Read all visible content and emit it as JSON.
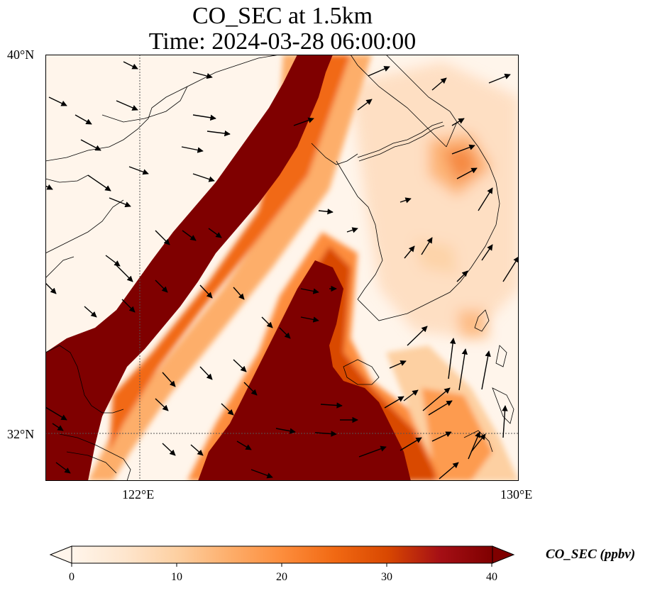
{
  "title_line1": "CO_SEC at 1.5km",
  "title_line2": "Time: 2024-03-28 06:00:00",
  "axes": {
    "lon_ticks": [
      "122°E",
      "130°E"
    ],
    "lat_ticks": [
      "40°N",
      "32°N"
    ],
    "extent": {
      "lon": [
        120,
        130
      ],
      "lat": [
        31,
        40
      ]
    }
  },
  "field": {
    "variable": "CO_SEC",
    "units": "ppbv",
    "cmap": [
      "#fff5eb",
      "#fee6ce",
      "#fdd0a2",
      "#fdae6b",
      "#fd8d3c",
      "#f16913",
      "#d94801",
      "#a50f15",
      "#7f0000"
    ],
    "min": 0,
    "max": 40,
    "background_ppbv": 3
  },
  "colorbar": {
    "label": "CO_SEC (ppbv)",
    "ticks": [
      "0",
      "10",
      "20",
      "30",
      "40"
    ],
    "extend": "both"
  },
  "wind_vectors": "black arrows showing mostly southeastward flow over China and the Yellow Sea, northeastward flow over Korea and the East China Sea"
}
